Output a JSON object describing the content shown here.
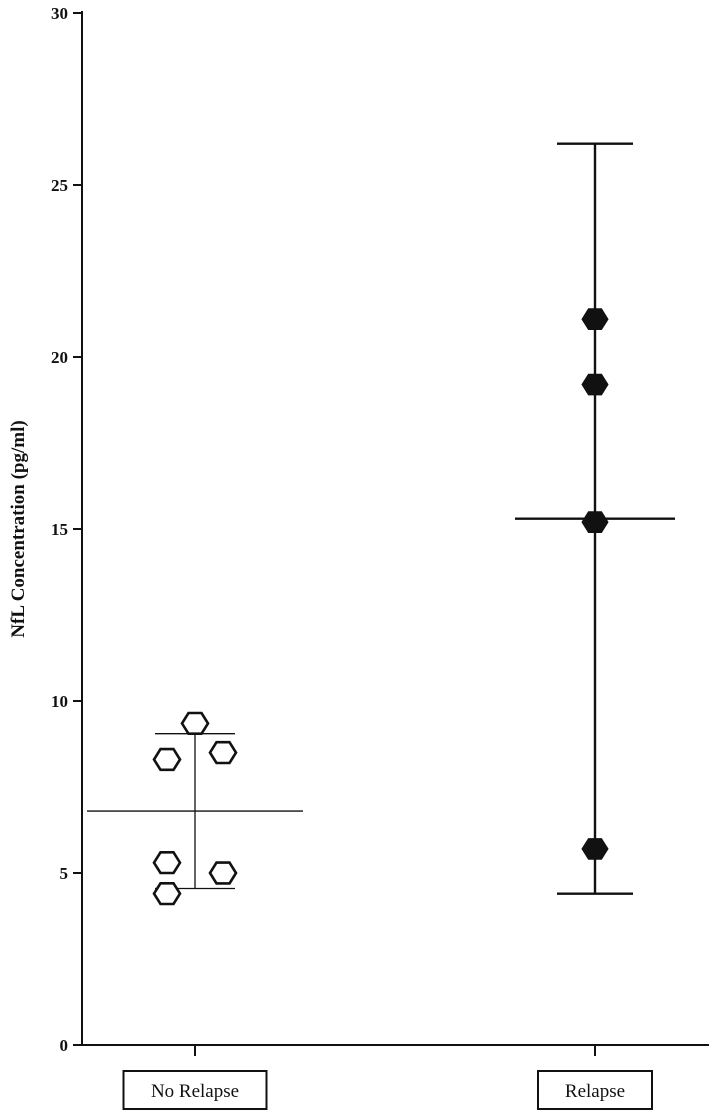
{
  "chart_data": {
    "type": "scatter",
    "ylabel": "NfL Concentration (pg/ml)",
    "ylim": [
      0,
      30
    ],
    "yticks": [
      "0",
      "5",
      "10",
      "15",
      "20",
      "25",
      "30"
    ],
    "categories": [
      "No Relapse",
      "Relapse"
    ],
    "groups": [
      {
        "category": "No Relapse",
        "marker": "open-hexagon",
        "points": [
          9.35,
          8.3,
          8.5,
          5.3,
          5.0,
          4.4
        ],
        "mean": 6.8,
        "error_low": 4.55,
        "error_high": 9.05
      },
      {
        "category": "Relapse",
        "marker": "filled-hexagon",
        "points": [
          21.1,
          19.2,
          15.2,
          5.7
        ],
        "mean": 15.3,
        "error_low": 4.4,
        "error_high": 26.2
      }
    ],
    "grid": false,
    "legend": "none",
    "colors": {
      "ink": "#111111",
      "background": "#ffffff"
    }
  }
}
